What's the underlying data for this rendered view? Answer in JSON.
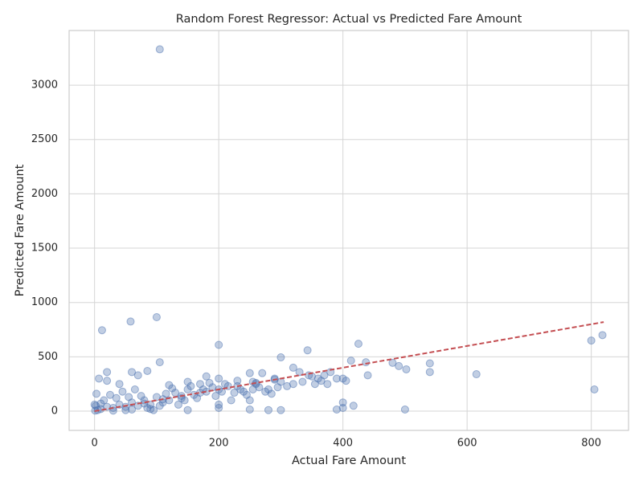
{
  "chart_data": {
    "type": "scatter",
    "title": "Random Forest Regressor: Actual vs Predicted Fare Amount",
    "x_label": "Actual Fare Amount",
    "y_label": "Predicted Fare Amount",
    "xlim": [
      -41,
      860
    ],
    "ylim": [
      -177,
      3503
    ],
    "xticks": [
      0,
      200,
      400,
      600,
      800
    ],
    "yticks": [
      0,
      500,
      1000,
      1500,
      2000,
      2500,
      3000
    ],
    "grid": true,
    "series": [
      {
        "color": "#4c72b0",
        "x": [
          105,
          12,
          58,
          100,
          105,
          200,
          300,
          343,
          425,
          413,
          437,
          480,
          490,
          502,
          540,
          540,
          615,
          800,
          818,
          805,
          500,
          400,
          400,
          417,
          390,
          300,
          280,
          250,
          440,
          400,
          405,
          380,
          370,
          360,
          350,
          335,
          320,
          330,
          310,
          290,
          270,
          250,
          255,
          230,
          210,
          200,
          190,
          180,
          170,
          160,
          150,
          140,
          130,
          120,
          110,
          100,
          90,
          80,
          70,
          60,
          50,
          40,
          30,
          20,
          10,
          5,
          2,
          0,
          1,
          3,
          7,
          20,
          20,
          40,
          60,
          70,
          85,
          120,
          150,
          180,
          200,
          220,
          240,
          260,
          280,
          300,
          320,
          345,
          355,
          365,
          375,
          390,
          15,
          25,
          35,
          45,
          55,
          65,
          75,
          85,
          95,
          105,
          115,
          125,
          135,
          145,
          155,
          165,
          175,
          185,
          195,
          205,
          215,
          225,
          235,
          245,
          255,
          265,
          275,
          285,
          295,
          30,
          60,
          90,
          150,
          200,
          250,
          10,
          50,
          80,
          110,
          140,
          170,
          200,
          230,
          260,
          290
        ],
        "values": [
          3330,
          745,
          825,
          865,
          450,
          610,
          495,
          560,
          620,
          465,
          450,
          445,
          415,
          385,
          440,
          360,
          340,
          650,
          700,
          200,
          15,
          30,
          80,
          50,
          15,
          10,
          10,
          15,
          330,
          300,
          280,
          360,
          330,
          300,
          320,
          270,
          400,
          360,
          230,
          300,
          350,
          350,
          200,
          280,
          250,
          300,
          220,
          180,
          250,
          150,
          200,
          120,
          170,
          100,
          80,
          130,
          60,
          100,
          50,
          80,
          40,
          60,
          30,
          40,
          20,
          10,
          50,
          60,
          5,
          160,
          300,
          280,
          360,
          250,
          360,
          330,
          370,
          240,
          270,
          320,
          60,
          100,
          180,
          250,
          200,
          270,
          250,
          330,
          250,
          280,
          250,
          300,
          100,
          150,
          120,
          180,
          130,
          200,
          140,
          30,
          10,
          50,
          160,
          210,
          60,
          100,
          230,
          120,
          200,
          260,
          140,
          180,
          230,
          170,
          200,
          150,
          270,
          220,
          180,
          160,
          220,
          5,
          15,
          20,
          10,
          30,
          100,
          70,
          10,
          70,
          110,
          140,
          170,
          200,
          230,
          260,
          290
        ]
      }
    ],
    "reference_line": {
      "color": "#c44e52",
      "x": [
        0,
        820
      ],
      "values": [
        0,
        820
      ]
    }
  }
}
